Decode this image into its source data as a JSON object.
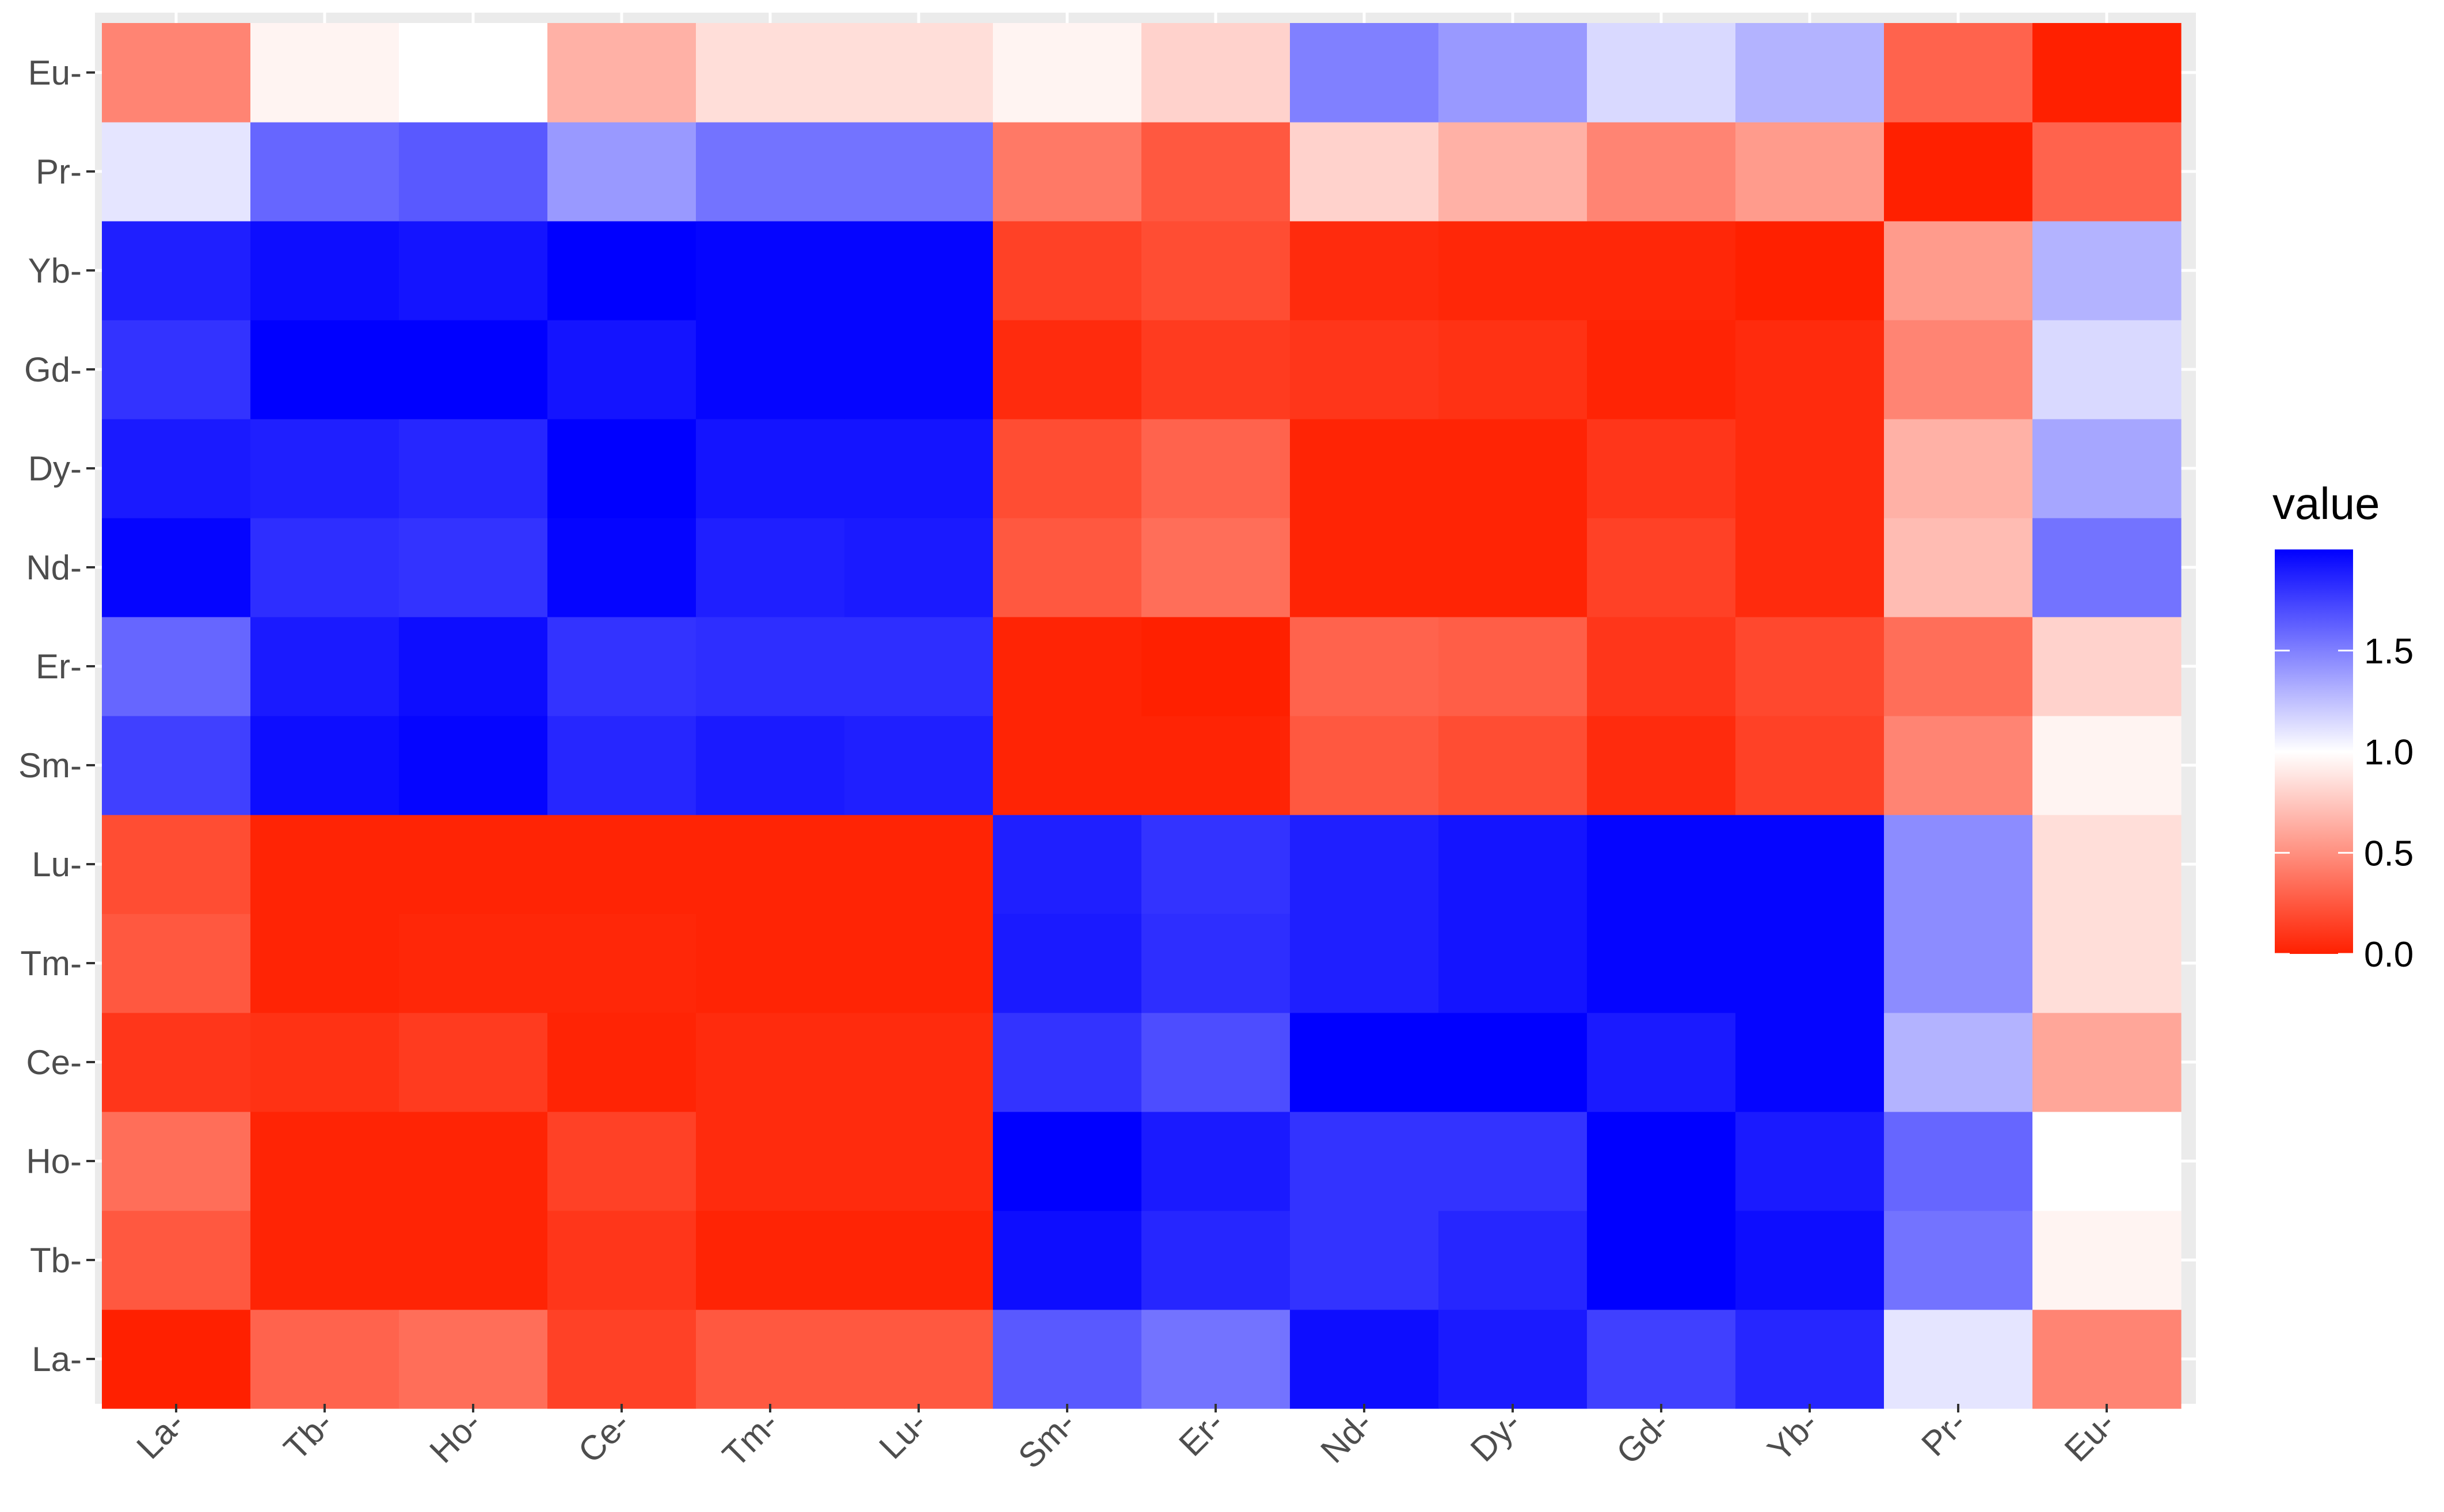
{
  "chart_data": {
    "type": "heatmap",
    "x_categories": [
      "La",
      "Tb",
      "Ho",
      "Ce",
      "Tm",
      "Lu",
      "Sm",
      "Er",
      "Nd",
      "Dy",
      "Gd",
      "Yb",
      "Pr",
      "Eu"
    ],
    "y_categories": [
      "La",
      "Tb",
      "Ho",
      "Ce",
      "Tm",
      "Lu",
      "Sm",
      "Er",
      "Nd",
      "Dy",
      "Gd",
      "Yb",
      "Pr",
      "Eu"
    ],
    "tick_suffix": "-",
    "values": [
      [
        0.0,
        0.3,
        0.35,
        0.15,
        0.25,
        0.25,
        1.65,
        1.55,
        1.95,
        1.9,
        1.75,
        1.85,
        1.1,
        0.45
      ],
      [
        0.25,
        0.02,
        0.02,
        0.1,
        0.02,
        0.02,
        1.95,
        1.85,
        1.8,
        1.85,
        2.0,
        1.95,
        1.55,
        0.95
      ],
      [
        0.35,
        0.02,
        0.02,
        0.15,
        0.05,
        0.05,
        2.0,
        1.9,
        1.8,
        1.8,
        2.0,
        1.9,
        1.6,
        1.0
      ],
      [
        0.1,
        0.08,
        0.12,
        0.02,
        0.05,
        0.05,
        1.8,
        1.7,
        2.0,
        2.0,
        1.9,
        1.98,
        1.3,
        0.6
      ],
      [
        0.25,
        0.02,
        0.03,
        0.03,
        0.02,
        0.02,
        1.9,
        1.82,
        1.88,
        1.92,
        1.98,
        1.98,
        1.45,
        0.85
      ],
      [
        0.2,
        0.02,
        0.02,
        0.02,
        0.02,
        0.02,
        1.88,
        1.8,
        1.88,
        1.92,
        1.98,
        1.98,
        1.45,
        0.85
      ],
      [
        1.75,
        1.95,
        1.98,
        1.85,
        1.9,
        1.88,
        0.02,
        0.02,
        0.25,
        0.2,
        0.05,
        0.15,
        0.45,
        0.95
      ],
      [
        1.6,
        1.9,
        1.95,
        1.8,
        1.82,
        1.82,
        0.02,
        0.0,
        0.3,
        0.28,
        0.1,
        0.18,
        0.35,
        0.8
      ],
      [
        1.98,
        1.82,
        1.8,
        1.98,
        1.88,
        1.9,
        0.25,
        0.35,
        0.02,
        0.02,
        0.15,
        0.05,
        0.7,
        1.55
      ],
      [
        1.9,
        1.88,
        1.85,
        2.0,
        1.92,
        1.92,
        0.2,
        0.3,
        0.02,
        0.02,
        0.1,
        0.05,
        0.65,
        1.35
      ],
      [
        1.8,
        2.0,
        2.0,
        1.92,
        1.98,
        1.98,
        0.05,
        0.12,
        0.1,
        0.08,
        0.02,
        0.05,
        0.45,
        1.15
      ],
      [
        1.88,
        1.95,
        1.92,
        2.0,
        1.98,
        1.98,
        0.15,
        0.2,
        0.05,
        0.03,
        0.03,
        0.0,
        0.55,
        1.3
      ],
      [
        1.1,
        1.6,
        1.65,
        1.4,
        1.55,
        1.55,
        0.4,
        0.25,
        0.8,
        0.65,
        0.45,
        0.55,
        0.0,
        0.3
      ],
      [
        0.45,
        0.95,
        1.0,
        0.65,
        0.85,
        0.85,
        0.95,
        0.8,
        1.5,
        1.4,
        1.15,
        1.3,
        0.3,
        0.0
      ]
    ],
    "value_range": [
      0,
      2
    ],
    "color_scale": {
      "low": "#ff2000",
      "mid": "#ffffff",
      "high": "#0000ff",
      "midpoint": 1.0
    },
    "legend": {
      "title": "value",
      "ticks": [
        "0.0",
        "0.5",
        "1.0",
        "1.5"
      ],
      "tick_values": [
        0,
        0.5,
        1.0,
        1.5
      ],
      "position": "right"
    },
    "panel_background": "#ebebeb",
    "grid": true
  }
}
